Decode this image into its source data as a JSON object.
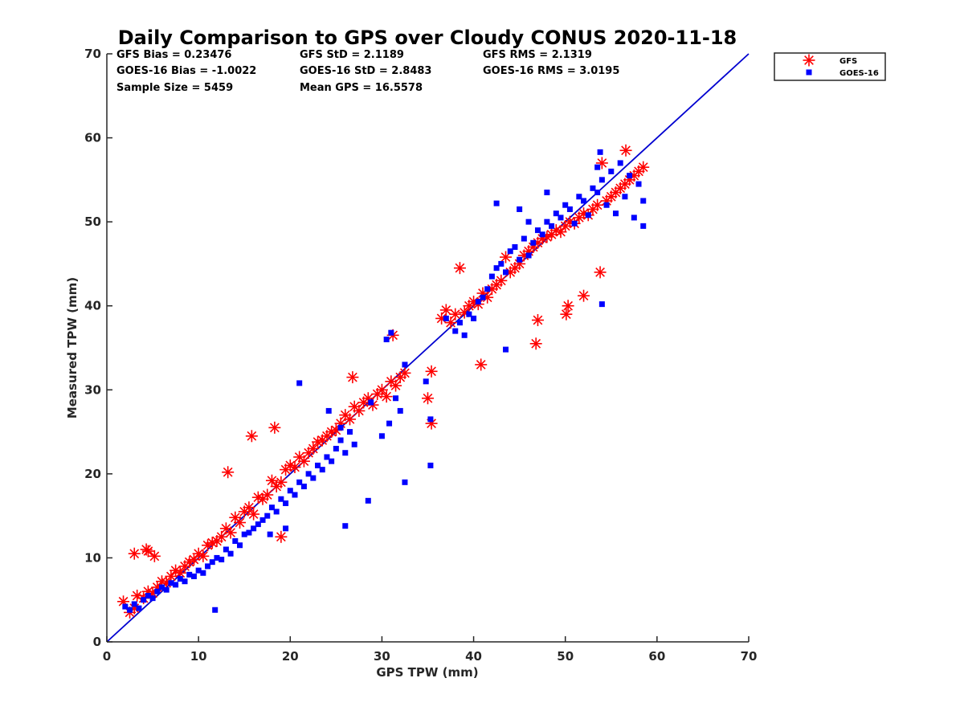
{
  "chart_data": {
    "type": "scatter",
    "title": "Daily Comparison to GPS over Cloudy CONUS 2020-11-18",
    "xlabel": "GPS TPW (mm)",
    "ylabel": "Measured TPW (mm)",
    "xlim": [
      0,
      70
    ],
    "ylim": [
      0,
      70
    ],
    "xticks": [
      "0",
      "10",
      "20",
      "30",
      "40",
      "50",
      "60",
      "70"
    ],
    "yticks": [
      "0",
      "10",
      "20",
      "30",
      "40",
      "50",
      "60",
      "70"
    ],
    "grid": false,
    "legend_position": "outside-top-right",
    "reference_line": {
      "x": [
        0,
        70
      ],
      "y": [
        0,
        70
      ],
      "color": "#0000d0"
    },
    "stats": [
      [
        "GFS Bias = 0.23476",
        "GFS StD = 2.1189",
        "GFS RMS = 2.1319"
      ],
      [
        "GOES-16 Bias = -1.0022",
        "GOES-16 StD = 2.8483",
        "GOES-16 RMS = 3.0195"
      ],
      [
        "Sample Size = 5459",
        "Mean GPS = 16.5578",
        ""
      ]
    ],
    "series": [
      {
        "name": "GFS",
        "marker": "asterisk",
        "color": "#ff0000",
        "x": [
          1.8,
          2.5,
          3.0,
          3.3,
          4.0,
          4.5,
          5.0,
          5.5,
          6.0,
          6.5,
          7.0,
          7.5,
          8.0,
          8.5,
          9.0,
          9.5,
          10.0,
          10.5,
          11.0,
          11.5,
          12.0,
          12.5,
          13.0,
          13.5,
          14.0,
          14.5,
          15.0,
          15.5,
          16.0,
          16.5,
          17.0,
          17.5,
          18.0,
          18.5,
          19.0,
          19.5,
          20.0,
          20.5,
          21.0,
          21.5,
          22.0,
          22.5,
          23.0,
          23.5,
          24.0,
          24.5,
          25.0,
          25.5,
          26.0,
          26.5,
          27.0,
          27.5,
          28.0,
          28.5,
          29.0,
          29.5,
          30.0,
          30.5,
          31.0,
          31.5,
          32.0,
          32.5,
          35.0,
          35.4,
          36.5,
          37.0,
          37.5,
          38.0,
          38.5,
          39.0,
          39.5,
          40.0,
          40.5,
          41.0,
          41.5,
          42.0,
          42.5,
          43.0,
          43.5,
          44.0,
          44.5,
          45.0,
          45.5,
          46.0,
          46.5,
          47.0,
          47.5,
          48.0,
          48.5,
          49.0,
          49.5,
          50.0,
          50.5,
          51.0,
          51.5,
          52.0,
          52.5,
          53.0,
          53.5,
          54.0,
          54.5,
          55.0,
          55.5,
          56.0,
          56.5,
          57.0,
          57.5,
          58.0,
          58.5,
          3.0,
          4.5,
          4.3,
          5.2,
          15.8,
          13.2,
          18.3,
          26.8,
          31.2,
          40.8,
          46.8,
          50.1,
          50.3,
          52.0,
          53.8,
          56.6,
          35.4,
          47.0,
          19.0
        ],
        "y": [
          4.8,
          3.5,
          4.0,
          5.5,
          5.2,
          6.0,
          5.8,
          6.5,
          7.2,
          7.0,
          7.8,
          8.5,
          8.2,
          9.0,
          9.5,
          9.8,
          10.5,
          10.2,
          11.5,
          11.8,
          12.0,
          12.5,
          13.5,
          13.0,
          14.8,
          14.2,
          15.5,
          16.0,
          15.2,
          17.2,
          17.0,
          17.5,
          19.2,
          18.5,
          19.0,
          20.5,
          21.0,
          20.8,
          22.0,
          21.5,
          22.5,
          23.0,
          23.8,
          24.0,
          24.5,
          25.0,
          25.2,
          26.0,
          27.0,
          26.5,
          28.0,
          27.5,
          28.5,
          29.0,
          28.2,
          29.5,
          30.0,
          29.2,
          31.0,
          30.5,
          31.5,
          32.0,
          29.0,
          32.2,
          38.5,
          39.5,
          38.0,
          39.0,
          44.5,
          39.2,
          40.0,
          40.5,
          40.2,
          41.5,
          41.0,
          42.0,
          42.5,
          43.0,
          45.8,
          44.0,
          44.5,
          45.0,
          46.0,
          46.5,
          47.0,
          47.5,
          48.0,
          48.2,
          48.5,
          49.0,
          48.8,
          49.5,
          50.0,
          49.8,
          50.5,
          51.0,
          50.8,
          51.5,
          52.0,
          57.0,
          52.5,
          53.0,
          53.5,
          54.0,
          54.5,
          55.0,
          55.5,
          56.0,
          56.5,
          10.5,
          10.8,
          11.0,
          10.2,
          24.5,
          20.2,
          25.5,
          31.5,
          36.5,
          33.0,
          35.5,
          39.0,
          40.0,
          41.2,
          44.0,
          58.5,
          26.0,
          38.3,
          12.5
        ]
      },
      {
        "name": "GOES-16",
        "marker": "square",
        "color": "#0000ff",
        "x": [
          2.0,
          2.5,
          3.0,
          3.5,
          4.0,
          4.5,
          5.0,
          5.5,
          6.0,
          6.5,
          7.0,
          7.5,
          8.0,
          8.5,
          9.0,
          9.5,
          10.0,
          10.5,
          11.0,
          11.5,
          12.0,
          12.5,
          13.0,
          13.5,
          14.0,
          14.5,
          15.0,
          15.5,
          16.0,
          16.5,
          17.0,
          17.5,
          18.0,
          18.5,
          19.0,
          19.5,
          20.0,
          20.5,
          21.0,
          21.5,
          22.0,
          22.5,
          23.0,
          23.5,
          24.0,
          24.5,
          25.0,
          25.5,
          26.0,
          26.5,
          27.0,
          28.5,
          30.0,
          30.8,
          31.5,
          32.0,
          32.5,
          34.8,
          35.3,
          37.0,
          38.0,
          38.5,
          39.0,
          39.5,
          40.0,
          40.5,
          41.0,
          41.5,
          42.0,
          42.5,
          43.0,
          43.5,
          44.0,
          44.5,
          45.0,
          45.5,
          46.0,
          46.5,
          47.0,
          47.5,
          48.0,
          48.5,
          49.0,
          49.5,
          50.0,
          50.5,
          51.0,
          51.5,
          52.0,
          52.5,
          53.0,
          53.5,
          54.0,
          54.5,
          55.0,
          55.5,
          56.0,
          56.5,
          57.0,
          57.5,
          58.0,
          58.5,
          21.0,
          24.2,
          25.5,
          26.0,
          28.8,
          31.0,
          30.5,
          32.5,
          35.3,
          19.5,
          17.8,
          11.8,
          42.5,
          43.5,
          53.8,
          54.0,
          58.5,
          45.0,
          48.0,
          53.5,
          46.0
        ],
        "y": [
          4.2,
          3.8,
          4.5,
          4.0,
          5.0,
          5.5,
          5.2,
          6.0,
          6.5,
          6.2,
          7.0,
          6.8,
          7.5,
          7.2,
          8.0,
          7.8,
          8.5,
          8.2,
          9.0,
          9.5,
          10.0,
          9.8,
          11.0,
          10.5,
          12.0,
          11.5,
          12.8,
          13.0,
          13.5,
          14.0,
          14.5,
          15.0,
          16.0,
          15.5,
          17.0,
          16.5,
          18.0,
          17.5,
          19.0,
          18.5,
          20.0,
          19.5,
          21.0,
          20.5,
          22.0,
          21.5,
          23.0,
          24.0,
          22.5,
          25.0,
          23.5,
          16.8,
          24.5,
          26.0,
          29.0,
          27.5,
          33.0,
          31.0,
          21.0,
          38.5,
          37.0,
          38.0,
          36.5,
          39.0,
          38.5,
          40.5,
          41.0,
          42.0,
          43.5,
          44.5,
          45.0,
          44.0,
          46.5,
          47.0,
          45.5,
          48.0,
          46.0,
          47.5,
          49.0,
          48.5,
          50.0,
          49.5,
          51.0,
          50.5,
          52.0,
          51.5,
          49.8,
          53.0,
          52.5,
          50.8,
          54.0,
          53.5,
          55.0,
          52.0,
          56.0,
          51.0,
          57.0,
          53.0,
          55.5,
          50.5,
          54.5,
          52.5,
          30.8,
          27.5,
          25.5,
          13.8,
          28.5,
          36.8,
          36.0,
          19.0,
          26.5,
          13.5,
          12.8,
          3.8,
          52.2,
          34.8,
          58.3,
          40.2,
          49.5,
          51.5,
          53.5,
          56.5,
          50.0
        ]
      }
    ]
  }
}
